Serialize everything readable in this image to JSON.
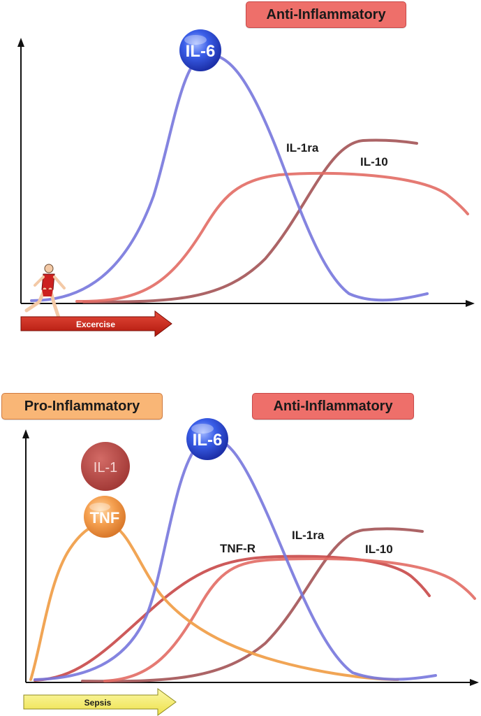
{
  "top_panel": {
    "anti_label": "Anti-Inflammatory",
    "markers": {
      "il6": "IL-6"
    },
    "curve_labels": {
      "il1ra": "IL-1ra",
      "il10": "IL-10"
    },
    "trigger": "Excercise",
    "colors": {
      "il6": "#7777dd",
      "il1ra": "#e26b64",
      "il10": "#a35355",
      "arrow": "#cc2a1c"
    }
  },
  "bottom_panel": {
    "pro_label": "Pro-Inflammatory",
    "anti_label": "Anti-Inflammatory",
    "markers": {
      "il1": "IL-1",
      "tnf": "TNF",
      "il6": "IL-6"
    },
    "curve_labels": {
      "tnfr": "TNF-R",
      "il1ra": "IL-1ra",
      "il10": "IL-10"
    },
    "trigger": "Sepsis",
    "colors": {
      "il6": "#7777dd",
      "tnf": "#f0a04c",
      "tnfr": "#c84848",
      "il1ra": "#e26b64",
      "il10": "#a35355",
      "il1": "#c0504d",
      "arrow": "#f7f27a"
    }
  }
}
